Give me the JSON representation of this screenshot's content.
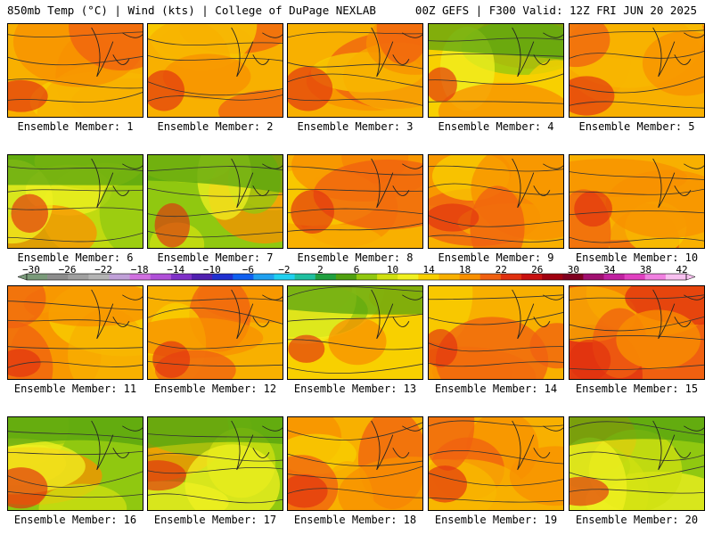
{
  "header": {
    "left": "850mb Temp (°C) | Wind (kts) | College of DuPage NEXLAB",
    "right": "00Z GEFS | F300 Valid: 12Z FRI JUN 20 2025"
  },
  "members": [
    {
      "label": "Ensemble Member: 1",
      "palette": "warm"
    },
    {
      "label": "Ensemble Member: 2",
      "palette": "warm"
    },
    {
      "label": "Ensemble Member: 3",
      "palette": "warm"
    },
    {
      "label": "Ensemble Member: 4",
      "palette": "mixed"
    },
    {
      "label": "Ensemble Member: 5",
      "palette": "warm"
    },
    {
      "label": "Ensemble Member: 6",
      "palette": "cool"
    },
    {
      "label": "Ensemble Member: 7",
      "palette": "cool"
    },
    {
      "label": "Ensemble Member: 8",
      "palette": "warm"
    },
    {
      "label": "Ensemble Member: 9",
      "palette": "warm"
    },
    {
      "label": "Ensemble Member: 10",
      "palette": "warm"
    },
    {
      "label": "Ensemble Member: 11",
      "palette": "warm"
    },
    {
      "label": "Ensemble Member: 12",
      "palette": "warm"
    },
    {
      "label": "Ensemble Member: 13",
      "palette": "mixed"
    },
    {
      "label": "Ensemble Member: 14",
      "palette": "warm"
    },
    {
      "label": "Ensemble Member: 15",
      "palette": "hot"
    },
    {
      "label": "Ensemble Member: 16",
      "palette": "cool"
    },
    {
      "label": "Ensemble Member: 17",
      "palette": "cool"
    },
    {
      "label": "Ensemble Member: 18",
      "palette": "warm"
    },
    {
      "label": "Ensemble Member: 19",
      "palette": "warm"
    },
    {
      "label": "Ensemble Member: 20",
      "palette": "cool"
    }
  ],
  "colorbar": {
    "labels": [
      "−30",
      "−26",
      "−22",
      "−18",
      "−14",
      "−10",
      "−6",
      "−2",
      "2",
      "6",
      "10",
      "14",
      "18",
      "22",
      "26",
      "30",
      "34",
      "38",
      "42"
    ],
    "colors": [
      "#7a9a7a",
      "#8c8c8c",
      "#a0a0a0",
      "#b4b4b4",
      "#c0a0d8",
      "#d070e0",
      "#b050d8",
      "#8030c8",
      "#5020b0",
      "#2030d0",
      "#1060f0",
      "#20a0f0",
      "#20d0f0",
      "#20c0a0",
      "#20a040",
      "#50a010",
      "#90c810",
      "#d0e010",
      "#f0f020",
      "#f8d000",
      "#f8b000",
      "#f89000",
      "#f06010",
      "#e03010",
      "#c81010",
      "#a00010",
      "#800020",
      "#a01070",
      "#c020a0",
      "#e040c0",
      "#f080e0",
      "#f8c0f0"
    ]
  }
}
